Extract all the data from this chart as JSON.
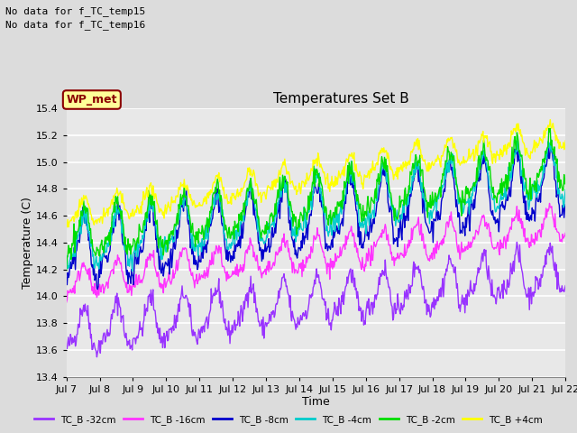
{
  "title": "Temperatures Set B",
  "xlabel": "Time",
  "ylabel": "Temperature (C)",
  "ylim": [
    13.4,
    15.4
  ],
  "xlim": [
    0,
    360
  ],
  "text_lines": [
    "No data for f_TC_temp15",
    "No data for f_TC_temp16"
  ],
  "wp_met_label": "WP_met",
  "xtick_labels": [
    "Jul 7",
    "Jul 8",
    "Jul 9",
    "Jul 10",
    "Jul 11",
    "Jul 12",
    "Jul 13",
    "Jul 14",
    "Jul 15",
    "Jul 16",
    "Jul 17",
    "Jul 18",
    "Jul 19",
    "Jul 20",
    "Jul 21",
    "Jul 22"
  ],
  "xtick_positions": [
    0,
    24,
    48,
    72,
    96,
    120,
    144,
    168,
    192,
    216,
    240,
    264,
    288,
    312,
    336,
    360
  ],
  "legend_colors": [
    "#9933FF",
    "#FF33FF",
    "#0000CC",
    "#00CCCC",
    "#00DD00",
    "#FFFF00"
  ],
  "legend_labels": [
    "TC_B -32cm",
    "TC_B -16cm",
    "TC_B -8cm",
    "TC_B -4cm",
    "TC_B -2cm",
    "TC_B +4cm"
  ],
  "bg_color": "#E8E8E8",
  "grid_color": "#FFFFFF",
  "fig_bg": "#DCDCDC",
  "yticks": [
    13.4,
    13.6,
    13.8,
    14.0,
    14.2,
    14.4,
    14.6,
    14.8,
    15.0,
    15.2,
    15.4
  ],
  "series_params": {
    "TC_B -32cm": {
      "base_start": 13.72,
      "base_end": 14.18,
      "amplitude": 0.15,
      "noise": 0.04,
      "var": 0.05,
      "period": 24
    },
    "TC_B -16cm": {
      "base_start": 14.09,
      "base_end": 14.52,
      "amplitude": 0.11,
      "noise": 0.03,
      "var": 0.035,
      "period": 24
    },
    "TC_B -8cm": {
      "base_start": 14.3,
      "base_end": 14.83,
      "amplitude": 0.22,
      "noise": 0.045,
      "var": 0.07,
      "period": 24
    },
    "TC_B -4cm": {
      "base_start": 14.37,
      "base_end": 14.92,
      "amplitude": 0.18,
      "noise": 0.04,
      "var": 0.05,
      "period": 24
    },
    "TC_B -2cm": {
      "base_start": 14.43,
      "base_end": 14.98,
      "amplitude": 0.17,
      "noise": 0.038,
      "var": 0.05,
      "period": 24
    },
    "TC_B +4cm": {
      "base_start": 14.6,
      "base_end": 15.2,
      "amplitude": 0.09,
      "noise": 0.025,
      "var": 0.03,
      "period": 24
    }
  },
  "series_order": [
    "TC_B -32cm",
    "TC_B -16cm",
    "TC_B -8cm",
    "TC_B -4cm",
    "TC_B -2cm",
    "TC_B +4cm"
  ]
}
